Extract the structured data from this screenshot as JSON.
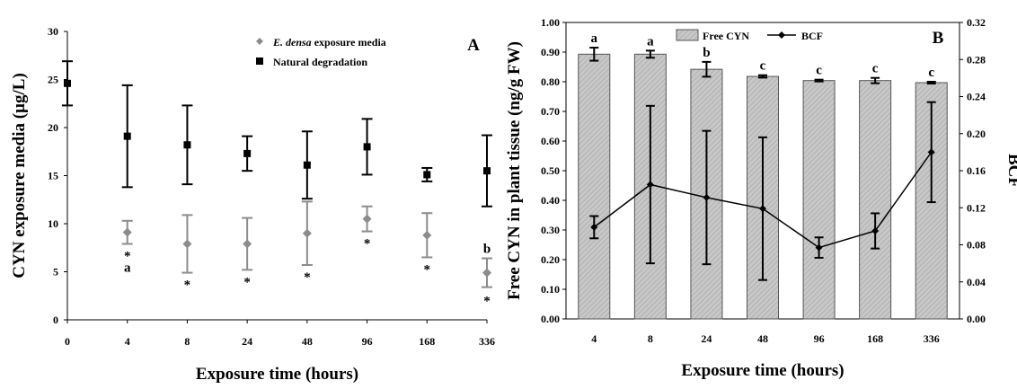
{
  "colors": {
    "gray_series": "#8c8c8c",
    "black_series": "#000000",
    "bar_fill": "#c8c8c8",
    "bar_stroke": "#555555"
  },
  "chart_data": [
    {
      "type": "scatter",
      "panel_label": "A",
      "xlabel": "Exposure time (hours)",
      "ylabel": "CYN exposure media (µg/L)",
      "ylim": [
        0,
        30
      ],
      "yticks": [
        "0",
        "5",
        "10",
        "15",
        "20",
        "25",
        "30"
      ],
      "categories": [
        "0",
        "4",
        "8",
        "24",
        "48",
        "96",
        "168",
        "336"
      ],
      "legend_position": "top-right",
      "series": [
        {
          "name_prefix": "E. densa",
          "name_suffix": " exposure media",
          "marker": "diamond",
          "color": "#8c8c8c",
          "values": [
            null,
            9.1,
            7.9,
            7.9,
            9.0,
            10.5,
            8.8,
            4.9
          ],
          "errors": [
            null,
            1.2,
            3.0,
            2.7,
            3.3,
            1.3,
            2.3,
            1.5
          ]
        },
        {
          "name": "Natural degradation",
          "marker": "square",
          "color": "#000000",
          "values": [
            24.6,
            19.1,
            18.2,
            17.3,
            16.1,
            18.0,
            15.1,
            15.5
          ],
          "errors": [
            2.3,
            5.3,
            4.1,
            1.8,
            3.5,
            2.9,
            0.7,
            3.7
          ]
        }
      ],
      "annotations": [
        {
          "index": 1,
          "lines": [
            "*",
            "a"
          ]
        },
        {
          "index": 2,
          "lines": [
            "*"
          ]
        },
        {
          "index": 3,
          "lines": [
            "*"
          ]
        },
        {
          "index": 4,
          "lines": [
            "*"
          ]
        },
        {
          "index": 5,
          "lines": [
            "*"
          ]
        },
        {
          "index": 6,
          "lines": [
            "*"
          ]
        },
        {
          "index": 7,
          "lines": [
            "b",
            "*"
          ]
        }
      ]
    },
    {
      "type": "bar",
      "panel_label": "B",
      "xlabel": "Exposure time (hours)",
      "ylabel": "Free CYN in plant tissue (ng/g FW)",
      "y2label": "BCF",
      "ylim": [
        0,
        1.0
      ],
      "y2lim": [
        0,
        0.32
      ],
      "yticks": [
        "0.00",
        "0.10",
        "0.20",
        "0.30",
        "0.40",
        "0.50",
        "0.60",
        "0.70",
        "0.80",
        "0.90",
        "1.00"
      ],
      "y2ticks": [
        "0.00",
        "0.04",
        "0.08",
        "0.12",
        "0.16",
        "0.20",
        "0.24",
        "0.28",
        "0.32"
      ],
      "categories": [
        "4",
        "8",
        "24",
        "48",
        "96",
        "168",
        "336"
      ],
      "legend_position": "top",
      "series": [
        {
          "name": "Free CYN",
          "type": "bar",
          "axis": "left",
          "values": [
            0.893,
            0.893,
            0.842,
            0.818,
            0.804,
            0.804,
            0.797
          ],
          "errors": [
            0.022,
            0.012,
            0.025,
            0.004,
            0.003,
            0.009,
            0.003
          ],
          "letters": [
            "a",
            "a",
            "b",
            "c",
            "c",
            "c",
            "c"
          ]
        },
        {
          "name": "BCF",
          "type": "line",
          "axis": "right",
          "values": [
            0.099,
            0.145,
            0.131,
            0.119,
            0.077,
            0.095,
            0.18
          ],
          "errors": [
            0.012,
            0.085,
            0.072,
            0.077,
            0.011,
            0.019,
            0.054
          ]
        }
      ]
    }
  ]
}
